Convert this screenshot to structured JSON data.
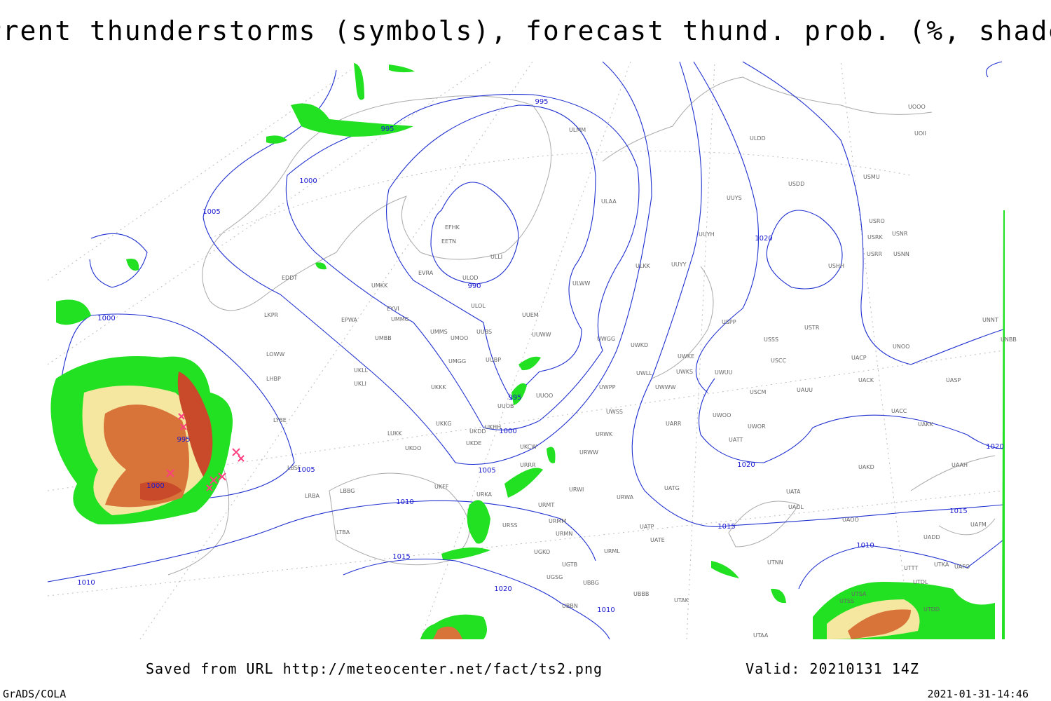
{
  "title": "Current thunderstorms (symbols), forecast thund. prob. (%, shaded)",
  "contour_labels": [
    995,
    995,
    1000,
    1005,
    990,
    1020,
    1000,
    995,
    1000,
    1005,
    1005,
    1000,
    995,
    1010,
    1020,
    1015,
    1020,
    1015,
    1010,
    1015,
    1020,
    1010,
    1010
  ],
  "stations": [
    "ULMM",
    "ULDD",
    "USDD",
    "USMU",
    "UUYS",
    "ULAA",
    "USRO",
    "USRK",
    "USNR",
    "UUYH",
    "USRR",
    "USNN",
    "EFHK",
    "EETN",
    "ULLI",
    "ULKK",
    "UUYY",
    "USHH",
    "EVRA",
    "ULOD",
    "EDDT",
    "UMKK",
    "ULWW",
    "ULOL",
    "EYVI",
    "UUEM",
    "LKPR",
    "EPWA",
    "UMMG",
    "USPP",
    "USTR",
    "UNNT",
    "UMMS",
    "UMOO",
    "UUBS",
    "UUWW",
    "UWGG",
    "UMBB",
    "USSS",
    "UNOO",
    "UNBB",
    "UWKD",
    "LOWW",
    "UWKE",
    "UACP",
    "USCC",
    "UUBP",
    "UMGG",
    "UKLL",
    "UKLI",
    "LHBP",
    "UWKS",
    "UWUU",
    "UWLL",
    "UACK",
    "UASP",
    "UKKK",
    "UWPP",
    "UWWW",
    "UAUU",
    "USCM",
    "UUOO",
    "UUOB",
    "UWSS",
    "UACC",
    "UWOO",
    "LYBE",
    "UKHH",
    "UKKG",
    "UKDD",
    "UAKK",
    "UWOR",
    "UARR",
    "LUKK",
    "URWK",
    "UATT",
    "UKDE",
    "UKOO",
    "UKCW",
    "URWW",
    "UAAH",
    "UAKD",
    "LBSF",
    "URRR",
    "UKFF",
    "URWI",
    "UATG",
    "UATA",
    "URKA",
    "URMT",
    "URWA",
    "UAOL",
    "UAOO",
    "UAFM",
    "URSS",
    "URMM",
    "UATP",
    "URMN",
    "LTBA",
    "UATE",
    "UADD",
    "UGKO",
    "URML",
    "UGTB",
    "UTNN",
    "UTTT",
    "UTKA",
    "UAFO",
    "UGSG",
    "UTDL",
    "UBBG",
    "UBBB",
    "UTAK",
    "UBBN",
    "UTSA",
    "UTSS",
    "UTDD",
    "UTAA",
    "LBBG",
    "LRBA",
    "UOOO",
    "UOII"
  ],
  "footer": {
    "source": "Saved from URL http://meteocenter.net/fact/ts2.png",
    "valid": "Valid: 20210131 14Z",
    "software": "GrADS/COLA",
    "timestamp": "2021-01-31-14:46"
  }
}
